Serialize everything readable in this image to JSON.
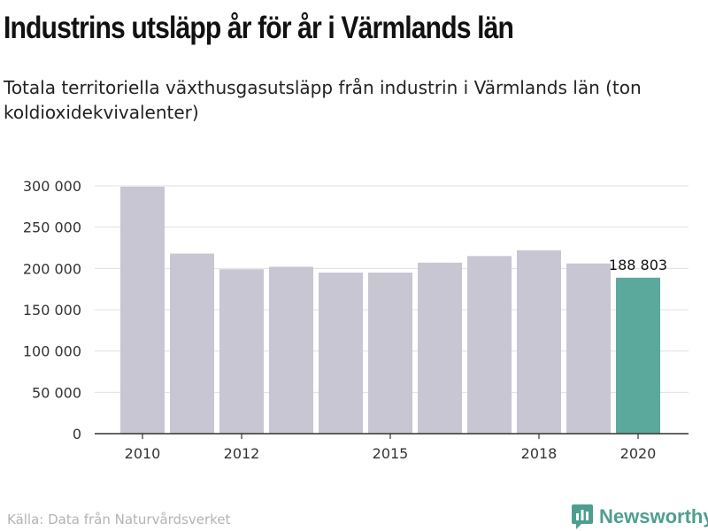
{
  "title": "Industrins utsläpp år för år i Värmlands län",
  "subtitle": "Totala territoriella växthusgasutsläpp från industrin i Värmlands län (ton koldioxidekvivalenter)",
  "source": "Källa: Data från Naturvårdsverket",
  "logo": {
    "text": "Newsworthy",
    "icon": "newsworthy-logo-icon"
  },
  "colors": {
    "bar": "#c8c6d2",
    "highlight": "#5ba89c",
    "grid": "#e0e0e0",
    "axis": "#333333",
    "logo": "#4e9e90"
  },
  "chart_data": {
    "type": "bar",
    "categories": [
      "2010",
      "2011",
      "2012",
      "2013",
      "2014",
      "2015",
      "2016",
      "2017",
      "2018",
      "2019",
      "2020"
    ],
    "values": [
      299000,
      218000,
      199000,
      202000,
      195000,
      195000,
      207000,
      215000,
      222000,
      206000,
      188803
    ],
    "highlight_index": 10,
    "data_labels": [
      {
        "index": 10,
        "text": "188 803"
      }
    ],
    "x_tick_labels": [
      {
        "index": 0,
        "label": "2010"
      },
      {
        "index": 2,
        "label": "2012"
      },
      {
        "index": 5,
        "label": "2015"
      },
      {
        "index": 8,
        "label": "2018"
      },
      {
        "index": 10,
        "label": "2020"
      }
    ],
    "y_ticks": [
      {
        "value": 0,
        "label": "0"
      },
      {
        "value": 50000,
        "label": "50 000"
      },
      {
        "value": 100000,
        "label": "100 000"
      },
      {
        "value": 150000,
        "label": "150 000"
      },
      {
        "value": 200000,
        "label": "200 000"
      },
      {
        "value": 250000,
        "label": "250 000"
      },
      {
        "value": 300000,
        "label": "300 000"
      }
    ],
    "ylim": [
      0,
      300000
    ],
    "grid": true,
    "xlabel": "",
    "ylabel": ""
  }
}
